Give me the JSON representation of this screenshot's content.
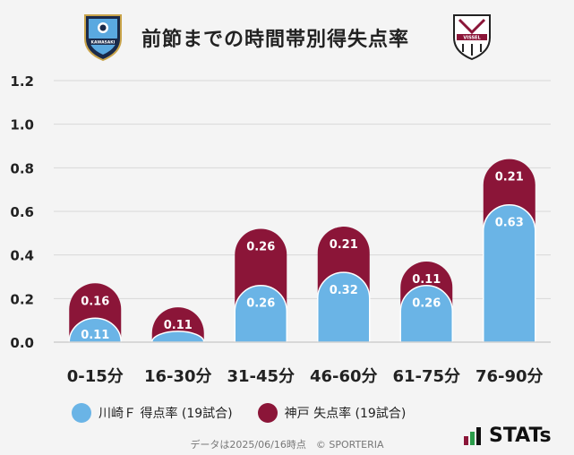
{
  "title": "前節までの時間帯別得失点率",
  "logos": {
    "left": "kawasaki-frontale-emblem",
    "right": "vissel-kobe-emblem",
    "left_text": "KAWASAKI",
    "right_text": "VISSEL"
  },
  "colors": {
    "home": "#6ab4e6",
    "away": "#8b1538",
    "grid": "#d8d8d8",
    "label": "#ffffff"
  },
  "chart_data": {
    "type": "bar",
    "stacked": true,
    "categories": [
      "0-15分",
      "16-30分",
      "31-45分",
      "46-60分",
      "61-75分",
      "76-90分"
    ],
    "series": [
      {
        "name": "川崎Ｆ 得点率 (19試合)",
        "values": [
          0.11,
          0.05,
          0.26,
          0.32,
          0.26,
          0.63
        ],
        "labels": [
          "0.11",
          "",
          "0.26",
          "0.32",
          "0.26",
          "0.63"
        ]
      },
      {
        "name": "神戸 失点率 (19試合)",
        "values": [
          0.16,
          0.11,
          0.26,
          0.21,
          0.11,
          0.21
        ],
        "labels": [
          "0.16",
          "0.11",
          "0.26",
          "0.21",
          "0.11",
          "0.21"
        ]
      }
    ],
    "ylim": [
      0,
      1.2
    ],
    "yticks": [
      "0.0",
      "0.2",
      "0.4",
      "0.6",
      "0.8",
      "1.0",
      "1.2"
    ],
    "grid": true
  },
  "footer": {
    "note": "データは2025/06/16時点　© SPORTERIA",
    "brand": "STATs"
  }
}
